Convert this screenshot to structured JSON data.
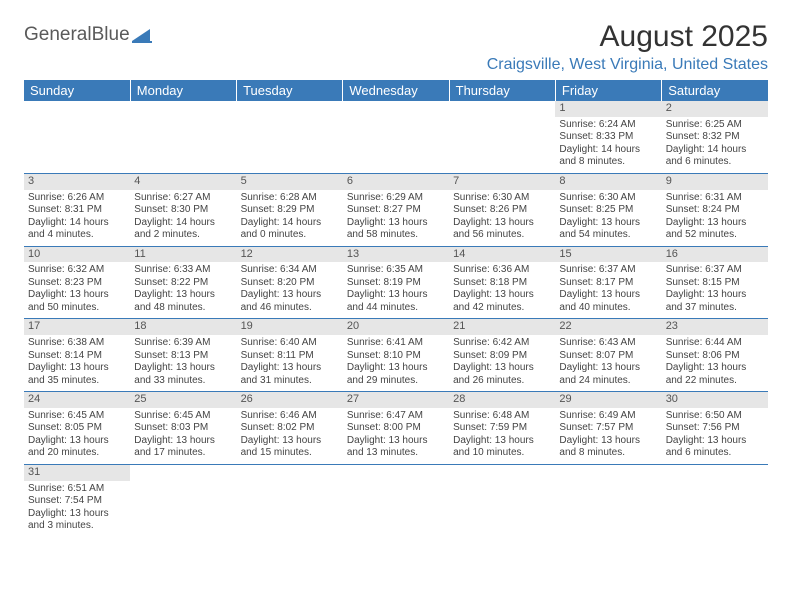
{
  "brand": {
    "part1": "General",
    "part2": "Blue",
    "icon_color": "#3a7ab8"
  },
  "title": "August 2025",
  "location": "Craigsville, West Virginia, United States",
  "colors": {
    "header_bg": "#3a7ab8",
    "header_text": "#ffffff",
    "daynum_bg": "#e6e6e6",
    "border": "#3a7ab8",
    "location_text": "#3a7ab8"
  },
  "weekdays": [
    "Sunday",
    "Monday",
    "Tuesday",
    "Wednesday",
    "Thursday",
    "Friday",
    "Saturday"
  ],
  "weeks": [
    [
      null,
      null,
      null,
      null,
      null,
      {
        "d": "1",
        "sr": "Sunrise: 6:24 AM",
        "ss": "Sunset: 8:33 PM",
        "dl": "Daylight: 14 hours and 8 minutes."
      },
      {
        "d": "2",
        "sr": "Sunrise: 6:25 AM",
        "ss": "Sunset: 8:32 PM",
        "dl": "Daylight: 14 hours and 6 minutes."
      }
    ],
    [
      {
        "d": "3",
        "sr": "Sunrise: 6:26 AM",
        "ss": "Sunset: 8:31 PM",
        "dl": "Daylight: 14 hours and 4 minutes."
      },
      {
        "d": "4",
        "sr": "Sunrise: 6:27 AM",
        "ss": "Sunset: 8:30 PM",
        "dl": "Daylight: 14 hours and 2 minutes."
      },
      {
        "d": "5",
        "sr": "Sunrise: 6:28 AM",
        "ss": "Sunset: 8:29 PM",
        "dl": "Daylight: 14 hours and 0 minutes."
      },
      {
        "d": "6",
        "sr": "Sunrise: 6:29 AM",
        "ss": "Sunset: 8:27 PM",
        "dl": "Daylight: 13 hours and 58 minutes."
      },
      {
        "d": "7",
        "sr": "Sunrise: 6:30 AM",
        "ss": "Sunset: 8:26 PM",
        "dl": "Daylight: 13 hours and 56 minutes."
      },
      {
        "d": "8",
        "sr": "Sunrise: 6:30 AM",
        "ss": "Sunset: 8:25 PM",
        "dl": "Daylight: 13 hours and 54 minutes."
      },
      {
        "d": "9",
        "sr": "Sunrise: 6:31 AM",
        "ss": "Sunset: 8:24 PM",
        "dl": "Daylight: 13 hours and 52 minutes."
      }
    ],
    [
      {
        "d": "10",
        "sr": "Sunrise: 6:32 AM",
        "ss": "Sunset: 8:23 PM",
        "dl": "Daylight: 13 hours and 50 minutes."
      },
      {
        "d": "11",
        "sr": "Sunrise: 6:33 AM",
        "ss": "Sunset: 8:22 PM",
        "dl": "Daylight: 13 hours and 48 minutes."
      },
      {
        "d": "12",
        "sr": "Sunrise: 6:34 AM",
        "ss": "Sunset: 8:20 PM",
        "dl": "Daylight: 13 hours and 46 minutes."
      },
      {
        "d": "13",
        "sr": "Sunrise: 6:35 AM",
        "ss": "Sunset: 8:19 PM",
        "dl": "Daylight: 13 hours and 44 minutes."
      },
      {
        "d": "14",
        "sr": "Sunrise: 6:36 AM",
        "ss": "Sunset: 8:18 PM",
        "dl": "Daylight: 13 hours and 42 minutes."
      },
      {
        "d": "15",
        "sr": "Sunrise: 6:37 AM",
        "ss": "Sunset: 8:17 PM",
        "dl": "Daylight: 13 hours and 40 minutes."
      },
      {
        "d": "16",
        "sr": "Sunrise: 6:37 AM",
        "ss": "Sunset: 8:15 PM",
        "dl": "Daylight: 13 hours and 37 minutes."
      }
    ],
    [
      {
        "d": "17",
        "sr": "Sunrise: 6:38 AM",
        "ss": "Sunset: 8:14 PM",
        "dl": "Daylight: 13 hours and 35 minutes."
      },
      {
        "d": "18",
        "sr": "Sunrise: 6:39 AM",
        "ss": "Sunset: 8:13 PM",
        "dl": "Daylight: 13 hours and 33 minutes."
      },
      {
        "d": "19",
        "sr": "Sunrise: 6:40 AM",
        "ss": "Sunset: 8:11 PM",
        "dl": "Daylight: 13 hours and 31 minutes."
      },
      {
        "d": "20",
        "sr": "Sunrise: 6:41 AM",
        "ss": "Sunset: 8:10 PM",
        "dl": "Daylight: 13 hours and 29 minutes."
      },
      {
        "d": "21",
        "sr": "Sunrise: 6:42 AM",
        "ss": "Sunset: 8:09 PM",
        "dl": "Daylight: 13 hours and 26 minutes."
      },
      {
        "d": "22",
        "sr": "Sunrise: 6:43 AM",
        "ss": "Sunset: 8:07 PM",
        "dl": "Daylight: 13 hours and 24 minutes."
      },
      {
        "d": "23",
        "sr": "Sunrise: 6:44 AM",
        "ss": "Sunset: 8:06 PM",
        "dl": "Daylight: 13 hours and 22 minutes."
      }
    ],
    [
      {
        "d": "24",
        "sr": "Sunrise: 6:45 AM",
        "ss": "Sunset: 8:05 PM",
        "dl": "Daylight: 13 hours and 20 minutes."
      },
      {
        "d": "25",
        "sr": "Sunrise: 6:45 AM",
        "ss": "Sunset: 8:03 PM",
        "dl": "Daylight: 13 hours and 17 minutes."
      },
      {
        "d": "26",
        "sr": "Sunrise: 6:46 AM",
        "ss": "Sunset: 8:02 PM",
        "dl": "Daylight: 13 hours and 15 minutes."
      },
      {
        "d": "27",
        "sr": "Sunrise: 6:47 AM",
        "ss": "Sunset: 8:00 PM",
        "dl": "Daylight: 13 hours and 13 minutes."
      },
      {
        "d": "28",
        "sr": "Sunrise: 6:48 AM",
        "ss": "Sunset: 7:59 PM",
        "dl": "Daylight: 13 hours and 10 minutes."
      },
      {
        "d": "29",
        "sr": "Sunrise: 6:49 AM",
        "ss": "Sunset: 7:57 PM",
        "dl": "Daylight: 13 hours and 8 minutes."
      },
      {
        "d": "30",
        "sr": "Sunrise: 6:50 AM",
        "ss": "Sunset: 7:56 PM",
        "dl": "Daylight: 13 hours and 6 minutes."
      }
    ],
    [
      {
        "d": "31",
        "sr": "Sunrise: 6:51 AM",
        "ss": "Sunset: 7:54 PM",
        "dl": "Daylight: 13 hours and 3 minutes."
      },
      null,
      null,
      null,
      null,
      null,
      null
    ]
  ]
}
